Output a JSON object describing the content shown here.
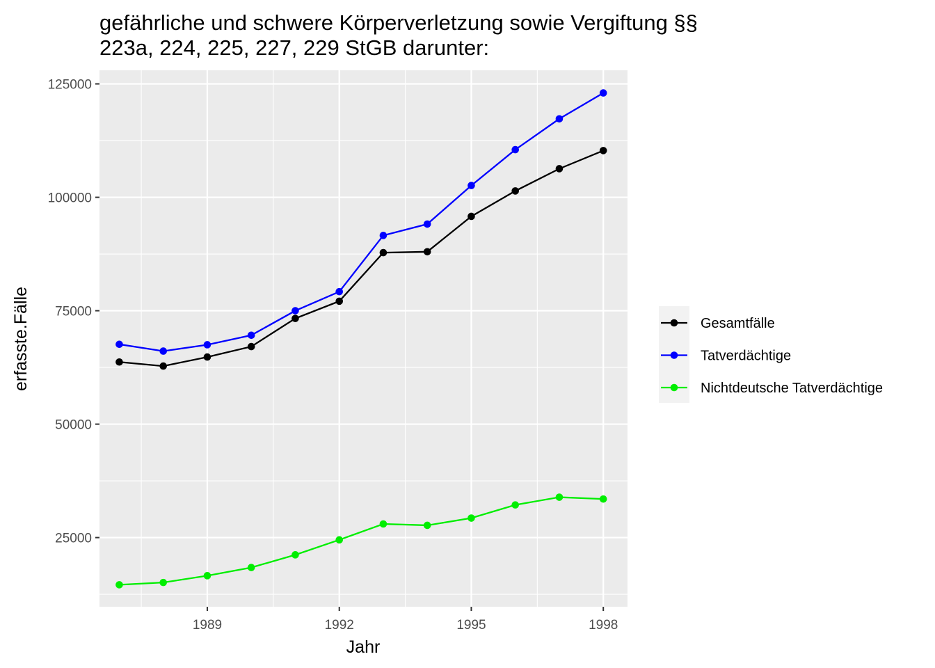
{
  "chart_data": {
    "type": "line",
    "title_lines": [
      "gefährliche und schwere Körperverletzung sowie Vergiftung §§",
      "223a, 224, 225, 227, 229 StGB darunter:"
    ],
    "xlabel": "Jahr",
    "ylabel": "erfasste.Fälle",
    "x": [
      1987,
      1988,
      1989,
      1990,
      1991,
      1992,
      1993,
      1994,
      1995,
      1996,
      1997,
      1998
    ],
    "xlim": [
      1986.55,
      1998.55
    ],
    "ylim": [
      9750,
      128000
    ],
    "x_ticks": [
      1989,
      1992,
      1995,
      1998
    ],
    "x_tick_labels": [
      "1989",
      "1992",
      "1995",
      "1998"
    ],
    "y_ticks": [
      25000,
      50000,
      75000,
      100000,
      125000
    ],
    "y_tick_labels": [
      "25000",
      "50000",
      "75000",
      "100000",
      "125000"
    ],
    "grid": true,
    "legend_position": "right",
    "series": [
      {
        "name": "Gesamtfälle",
        "color": "#000000",
        "values": [
          63700,
          62800,
          64800,
          67100,
          73300,
          77100,
          87800,
          88000,
          95800,
          101400,
          106300,
          110300
        ]
      },
      {
        "name": "Tatverdächtige",
        "color": "#0000ff",
        "values": [
          67600,
          66100,
          67500,
          69600,
          75000,
          79200,
          91600,
          94100,
          102600,
          110500,
          117300,
          123000
        ]
      },
      {
        "name": "Nichtdeutsche Tatverdächtige",
        "color": "#00ee00",
        "values": [
          14600,
          15100,
          16600,
          18400,
          21200,
          24500,
          28000,
          27700,
          29300,
          32200,
          33900,
          33500
        ]
      }
    ]
  }
}
